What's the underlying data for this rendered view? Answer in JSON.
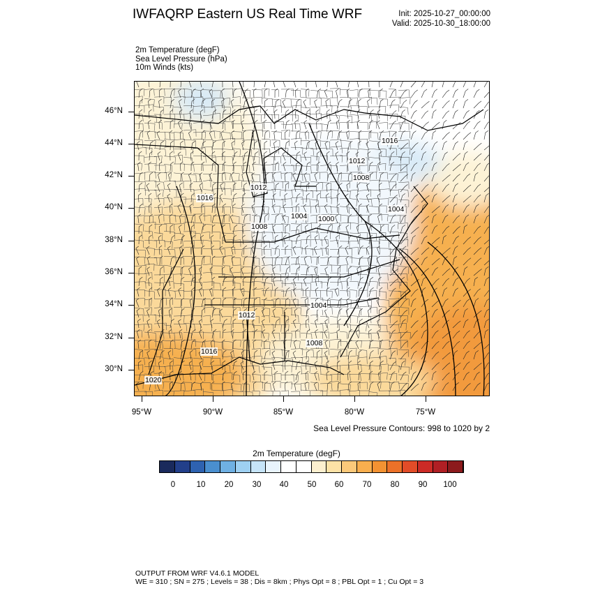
{
  "title": "IWFAQRP Eastern US Real Time WRF",
  "init": "Init: 2025-10-27_00:00:00",
  "valid": "Valid: 2025-10-30_18:00:00",
  "fields": [
    "2m Temperature   (degF)",
    "Sea Level Pressure   (hPa)",
    "10m Winds   (kts)"
  ],
  "map": {
    "lat_labels": [
      "46°N",
      "44°N",
      "42°N",
      "40°N",
      "38°N",
      "36°N",
      "34°N",
      "32°N",
      "30°N"
    ],
    "lon_labels": [
      "95°W",
      "90°W",
      "85°W",
      "80°W",
      "75°W"
    ],
    "slp_labels": [
      "1016",
      "1012",
      "1008",
      "1016",
      "1012",
      "1008",
      "1004",
      "1000",
      "1004",
      "1004",
      "1012",
      "1008",
      "1016",
      "1020"
    ],
    "colors": {
      "cold": "#d8eaf7",
      "cool": "#f2f8fd",
      "mild": "#fdf3d6",
      "warm": "#fbd99a",
      "hot": "#f6b04f",
      "hotter": "#f29a3d",
      "border": "#000000"
    }
  },
  "contour_note": "Sea Level Pressure Contours: 998 to 1020 by 2",
  "colorbar": {
    "title": "2m Temperature  (degF)",
    "colors": [
      "#1a2a5c",
      "#223f8a",
      "#2e62b0",
      "#4a8fcf",
      "#6fb0e3",
      "#9ed0f2",
      "#c6e4f8",
      "#e9f4fc",
      "#ffffff",
      "#ffffff",
      "#fdf0cf",
      "#fde2a6",
      "#fbc97a",
      "#f8ae4e",
      "#f39232",
      "#ec7128",
      "#e24c28",
      "#cc2b26",
      "#b01f24",
      "#8c1a1c"
    ],
    "ticks": [
      "0",
      "10",
      "20",
      "30",
      "40",
      "50",
      "60",
      "70",
      "80",
      "90",
      "100"
    ]
  },
  "footer": {
    "line1": "OUTPUT FROM WRF V4.6.1 MODEL",
    "line2": "WE = 310 ; SN = 275 ; Levels = 38 ; Dis = 8km ; Phys Opt = 8 ; PBL Opt = 1 ; Cu Opt = 3"
  }
}
